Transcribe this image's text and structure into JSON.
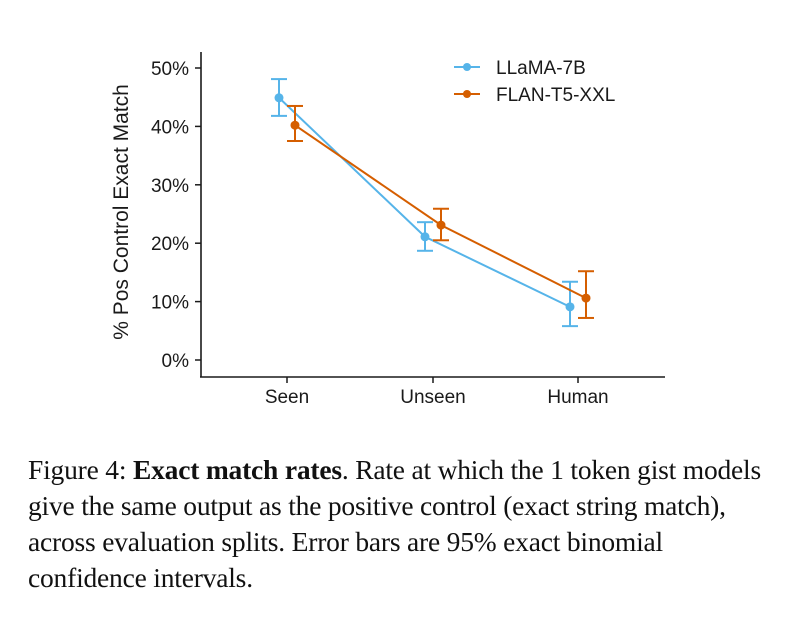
{
  "chart_data": {
    "type": "line",
    "title": "",
    "xlabel": "",
    "ylabel": "% Pos Control Exact Match",
    "categories": [
      "Seen",
      "Unseen",
      "Human"
    ],
    "ylim": [
      0,
      50
    ],
    "yticks": [
      0,
      10,
      20,
      30,
      40,
      50
    ],
    "ytick_labels": [
      "0%",
      "10%",
      "20%",
      "30%",
      "40%",
      "50%"
    ],
    "grid": false,
    "legend_position": "top-right",
    "series": [
      {
        "name": "LLaMA-7B",
        "color": "#56B4E9",
        "values": [
          44.9,
          21.1,
          9.1
        ],
        "error_low": [
          41.8,
          18.7,
          5.8
        ],
        "error_high": [
          48.1,
          23.6,
          13.4
        ]
      },
      {
        "name": "FLAN-T5-XXL",
        "color": "#D55E00",
        "values": [
          40.2,
          23.1,
          10.6
        ],
        "error_low": [
          37.5,
          20.5,
          7.2
        ],
        "error_high": [
          43.5,
          25.9,
          15.2
        ]
      }
    ]
  },
  "caption": {
    "label": "Figure 4: ",
    "bold": "Exact match rates",
    "text": ". Rate at which the 1 token gist models give the same output as the positive control (exact string match), across evaluation splits. Error bars are 95% exact binomial confidence intervals."
  }
}
